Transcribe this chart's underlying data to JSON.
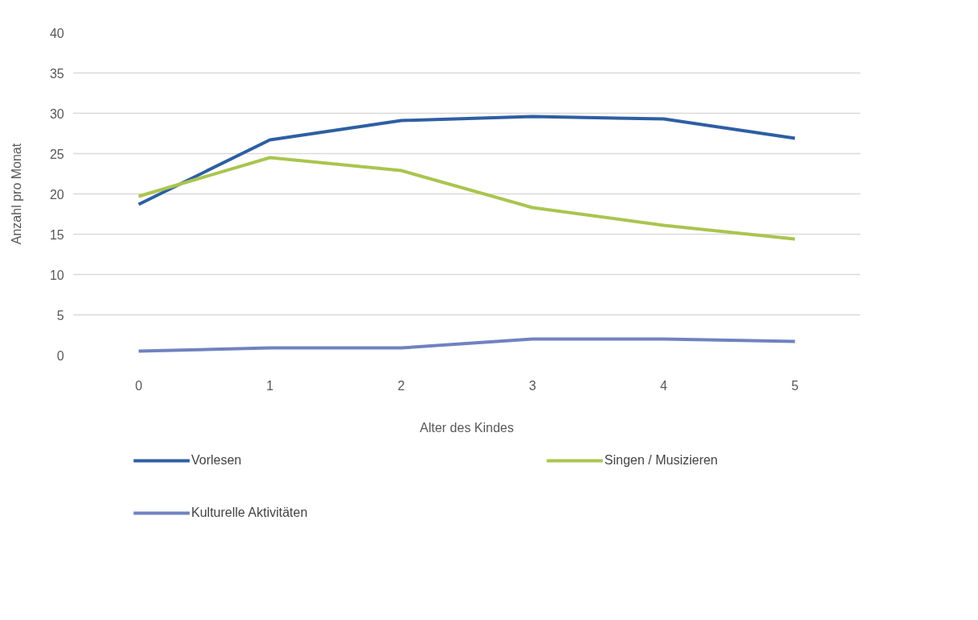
{
  "chart_data": {
    "type": "line",
    "xlabel": "Alter des Kindes",
    "ylabel": "Anzahl pro Monat",
    "categories": [
      "0",
      "1",
      "2",
      "3",
      "4",
      "5"
    ],
    "series": [
      {
        "name": "Vorlesen",
        "color": "#2e5fa3",
        "values": [
          18.7,
          26.7,
          29.1,
          29.6,
          29.3,
          26.9
        ]
      },
      {
        "name": "Singen / Musizieren",
        "color": "#a9c54f",
        "values": [
          19.7,
          24.5,
          22.9,
          18.3,
          16.1,
          14.4
        ]
      },
      {
        "name": "Kulturelle Aktivitäten",
        "color": "#7082c1",
        "values": [
          0.5,
          0.9,
          0.9,
          2.0,
          2.0,
          1.7
        ]
      }
    ],
    "ylim": [
      0,
      40
    ],
    "yticks": [
      0,
      5,
      10,
      15,
      20,
      25,
      30,
      35,
      40
    ],
    "grid": "y",
    "legend": "bottom",
    "marker": "none",
    "line_style": "solid"
  }
}
